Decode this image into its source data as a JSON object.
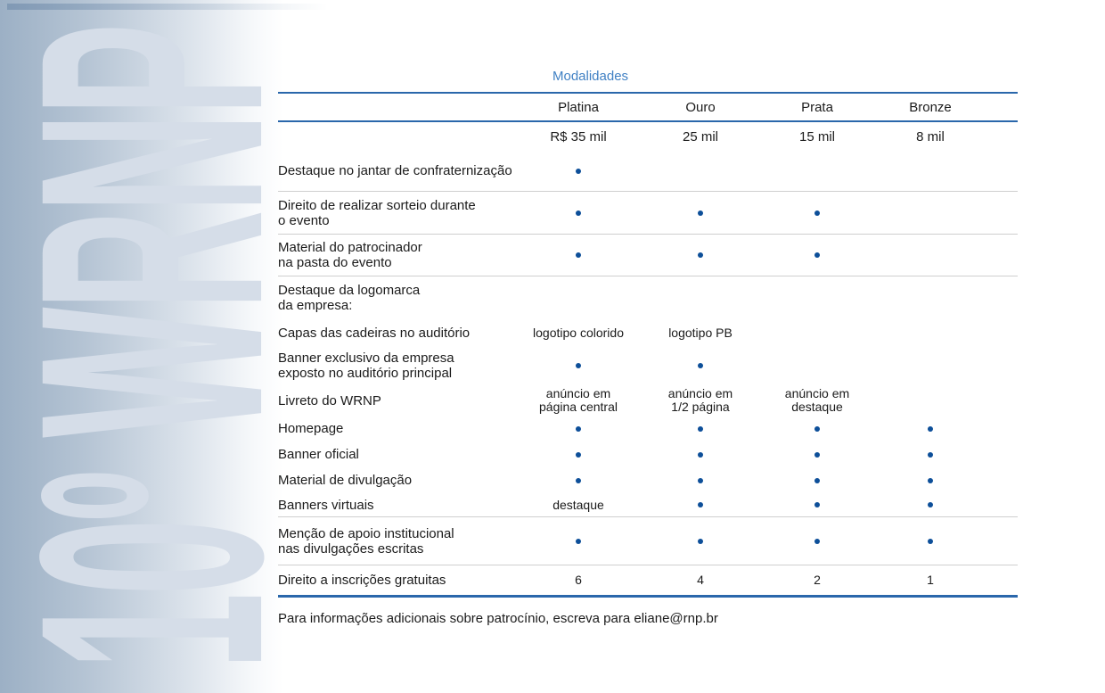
{
  "page": {
    "watermark": "10º WRNP",
    "footer": "Para informações adicionais sobre patrocínio, escreva para eliane@rnp.br"
  },
  "colors": {
    "accent_line_blue": "#2a67ab",
    "title_blue": "#4181c4",
    "dot_navy": "#0d4f99",
    "panel_gradient_left": "#9cb0c5",
    "watermark_text": "#d5dde8",
    "separator_gray": "#cfcfcf",
    "body_text": "#1b1b1b"
  },
  "table": {
    "title": "Modalidades",
    "columns": [
      "Platina",
      "Ouro",
      "Prata",
      "Bronze"
    ],
    "prices": [
      "R$ 35 mil",
      "25 mil",
      "15 mil",
      "8 mil"
    ],
    "dot_symbol": "•",
    "rows": [
      {
        "label": "Destaque no jantar de confraternização",
        "cells": [
          "•",
          "",
          "",
          ""
        ],
        "separator": "gray"
      },
      {
        "label": "Direito de realizar sorteio durante\no evento",
        "cells": [
          "•",
          "•",
          "•",
          ""
        ],
        "separator": "gray"
      },
      {
        "label": "Material do patrocinador\nna pasta do evento",
        "cells": [
          "•",
          "•",
          "•",
          ""
        ],
        "separator": "gray"
      },
      {
        "label": "Destaque da logomarca\nda empresa:",
        "cells": [
          "",
          "",
          "",
          ""
        ],
        "separator": "none"
      },
      {
        "label": "Capas das cadeiras no auditório",
        "cells": [
          "logotipo colorido",
          "logotipo  PB",
          "",
          ""
        ],
        "separator": "none"
      },
      {
        "label": "Banner exclusivo da empresa\nexposto no auditório principal",
        "cells": [
          "•",
          "•",
          "",
          ""
        ],
        "separator": "none"
      },
      {
        "label": "Livreto do WRNP",
        "cells": [
          "anúncio em\npágina central",
          "anúncio em\n1/2 página",
          "anúncio em\ndestaque",
          ""
        ],
        "separator": "none"
      },
      {
        "label": "Homepage",
        "cells": [
          "•",
          "•",
          "•",
          "•"
        ],
        "separator": "none"
      },
      {
        "label": "Banner oficial",
        "cells": [
          "•",
          "•",
          "•",
          "•"
        ],
        "separator": "none"
      },
      {
        "label": "Material de divulgação",
        "cells": [
          "•",
          "•",
          "•",
          "•"
        ],
        "separator": "none"
      },
      {
        "label": "Banners virtuais",
        "cells": [
          "destaque",
          "•",
          "•",
          "•"
        ],
        "separator": "gray"
      },
      {
        "label": "Menção de apoio institucional\nnas divulgações escritas",
        "cells": [
          "•",
          "•",
          "•",
          "•"
        ],
        "separator": "gray"
      },
      {
        "label": "Direito a inscrições gratuitas",
        "cells": [
          "6",
          "4",
          "2",
          "1"
        ],
        "separator": "blue"
      }
    ]
  }
}
